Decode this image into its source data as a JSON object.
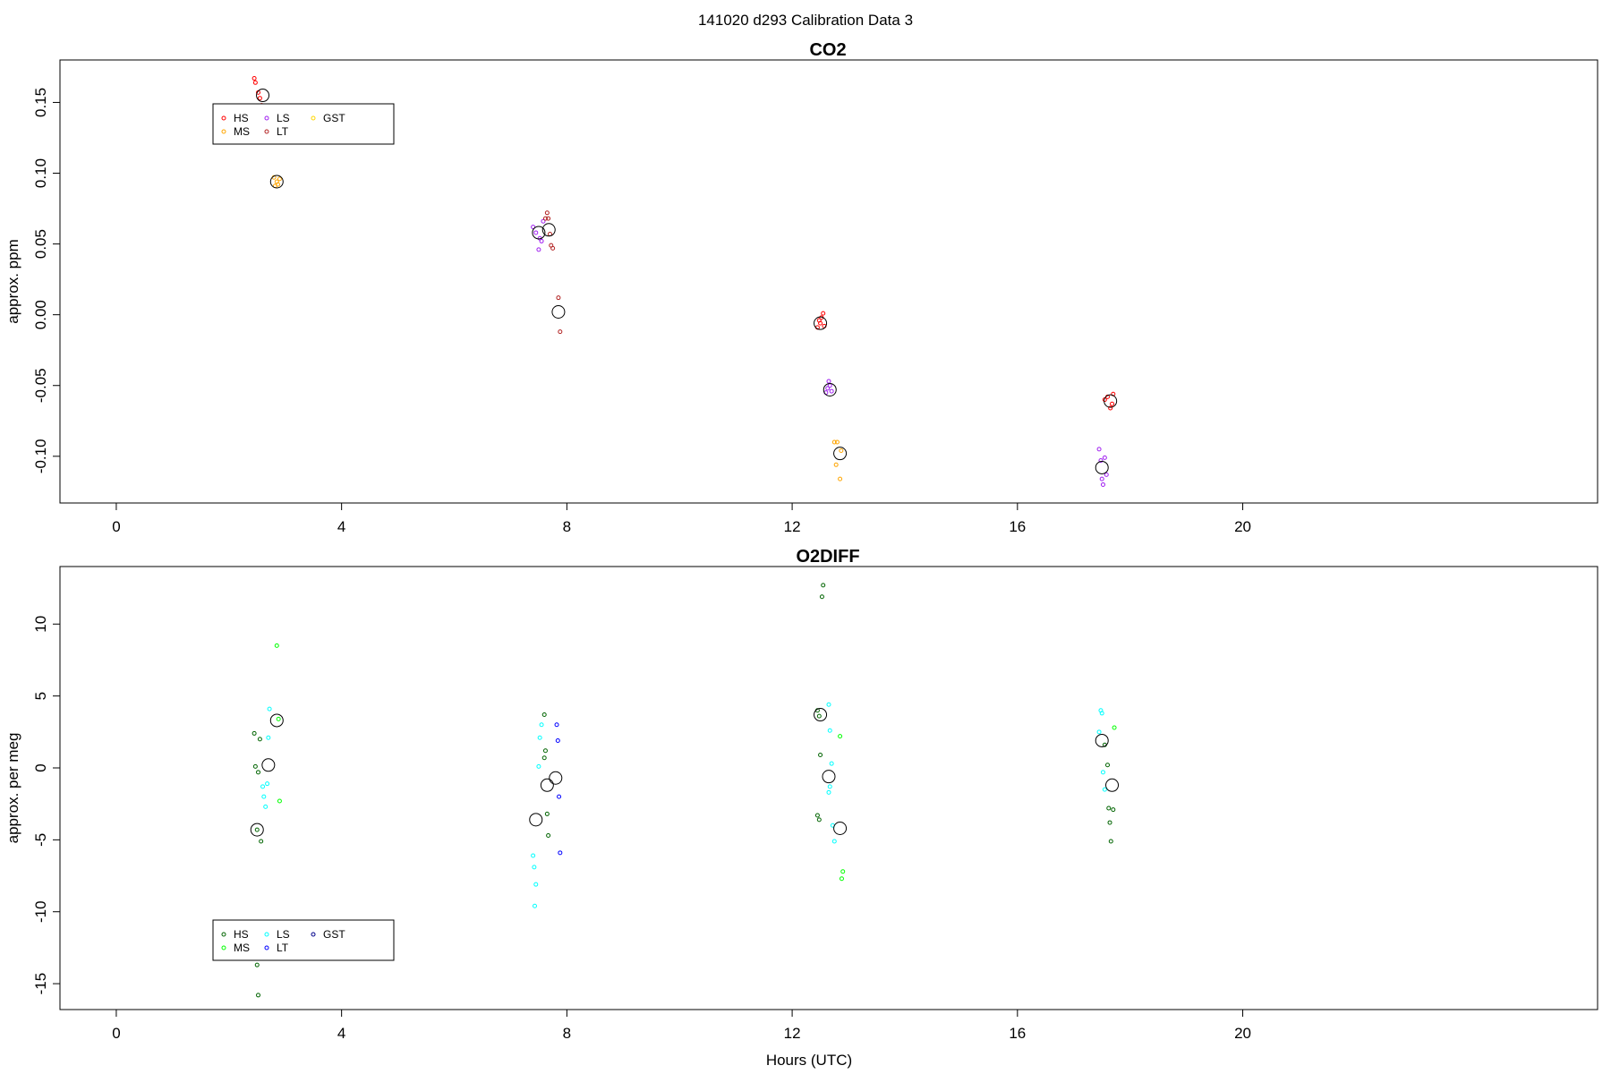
{
  "figure_title": "141020   d293   Calibration Data 3",
  "x_axis_label": "Hours (UTC)",
  "chart_data": [
    {
      "type": "scatter",
      "title": "CO2",
      "xlabel": "",
      "ylabel": "approx. ppm",
      "xlim": [
        -1,
        26.3
      ],
      "ylim": [
        -0.133,
        0.18
      ],
      "x_ticks": [
        0,
        4,
        8,
        12,
        16,
        20
      ],
      "y_ticks": [
        -0.1,
        -0.05,
        0.0,
        0.05,
        0.1,
        0.15
      ],
      "y_tick_labels": [
        "-0.10",
        "-0.05",
        "0.00",
        "0.05",
        "0.10",
        "0.15"
      ],
      "grid": false,
      "legend": {
        "placement": "top-left",
        "entries": [
          {
            "label": "HS",
            "color": "#ff0000"
          },
          {
            "label": "LS",
            "color": "#a020f0"
          },
          {
            "label": "GST",
            "color": "#ffd700"
          },
          {
            "label": "MS",
            "color": "#ffa500"
          },
          {
            "label": "LT",
            "color": "#b22222"
          }
        ]
      },
      "series": [
        {
          "name": "HS",
          "color": "#ff0000",
          "points": [
            [
              2.45,
              0.167
            ],
            [
              2.47,
              0.164
            ],
            [
              2.52,
              0.157
            ],
            [
              2.55,
              0.153
            ],
            [
              2.58,
              0.148
            ],
            [
              12.45,
              -0.009
            ],
            [
              12.48,
              -0.004
            ],
            [
              12.5,
              -0.006
            ],
            [
              12.52,
              -0.002
            ],
            [
              12.55,
              0.001
            ],
            [
              12.57,
              -0.008
            ],
            [
              17.55,
              -0.06
            ],
            [
              17.6,
              -0.058
            ],
            [
              17.65,
              -0.066
            ],
            [
              17.68,
              -0.063
            ],
            [
              17.7,
              -0.056
            ]
          ]
        },
        {
          "name": "MS",
          "color": "#ffa500",
          "points": [
            [
              2.8,
              0.097
            ],
            [
              2.82,
              0.091
            ],
            [
              2.85,
              0.094
            ],
            [
              2.87,
              0.092
            ],
            [
              2.9,
              0.096
            ],
            [
              12.75,
              -0.09
            ],
            [
              12.78,
              -0.106
            ],
            [
              12.8,
              -0.09
            ],
            [
              12.85,
              -0.116
            ],
            [
              12.87,
              -0.096
            ]
          ]
        },
        {
          "name": "LS",
          "color": "#a020f0",
          "points": [
            [
              7.4,
              0.062
            ],
            [
              7.45,
              0.058
            ],
            [
              7.5,
              0.046
            ],
            [
              7.52,
              0.054
            ],
            [
              7.55,
              0.052
            ],
            [
              7.58,
              0.066
            ],
            [
              12.6,
              -0.055
            ],
            [
              12.63,
              -0.052
            ],
            [
              12.65,
              -0.047
            ],
            [
              12.67,
              -0.05
            ],
            [
              12.7,
              -0.054
            ],
            [
              17.45,
              -0.095
            ],
            [
              17.48,
              -0.103
            ],
            [
              17.5,
              -0.116
            ],
            [
              17.52,
              -0.12
            ],
            [
              17.55,
              -0.101
            ],
            [
              17.58,
              -0.113
            ]
          ]
        },
        {
          "name": "LT",
          "color": "#b22222",
          "points": [
            [
              7.62,
              0.068
            ],
            [
              7.65,
              0.072
            ],
            [
              7.67,
              0.068
            ],
            [
              7.7,
              0.057
            ],
            [
              7.72,
              0.049
            ],
            [
              7.75,
              0.047
            ],
            [
              7.85,
              0.012
            ],
            [
              7.88,
              -0.012
            ]
          ]
        },
        {
          "name": "GST",
          "color": "#ffd700",
          "points": []
        }
      ],
      "means": [
        [
          2.6,
          0.155
        ],
        [
          2.85,
          0.094
        ],
        [
          7.5,
          0.058
        ],
        [
          7.68,
          0.06
        ],
        [
          7.85,
          0.002
        ],
        [
          12.5,
          -0.006
        ],
        [
          12.67,
          -0.053
        ],
        [
          12.85,
          -0.098
        ],
        [
          17.5,
          -0.108
        ],
        [
          17.65,
          -0.061
        ]
      ]
    },
    {
      "type": "scatter",
      "title": "O2DIFF",
      "xlabel": "Hours (UTC)",
      "ylabel": "approx. per meg",
      "xlim": [
        -1,
        26.3
      ],
      "ylim": [
        -16.8,
        14.0
      ],
      "x_ticks": [
        0,
        4,
        8,
        12,
        16,
        20
      ],
      "y_ticks": [
        -15,
        -10,
        -5,
        0,
        5,
        10
      ],
      "y_tick_labels": [
        "-15",
        "-10",
        "-5",
        "0",
        "5",
        "10"
      ],
      "grid": false,
      "legend": {
        "placement": "bottom-left",
        "entries": [
          {
            "label": "HS",
            "color": "#006400"
          },
          {
            "label": "LS",
            "color": "#00ffff"
          },
          {
            "label": "GST",
            "color": "#00008b"
          },
          {
            "label": "MS",
            "color": "#00ff00"
          },
          {
            "label": "LT",
            "color": "#0000ff"
          }
        ]
      },
      "series": [
        {
          "name": "HS",
          "color": "#006400",
          "points": [
            [
              2.45,
              2.4
            ],
            [
              2.47,
              0.1
            ],
            [
              2.5,
              -4.3
            ],
            [
              2.52,
              -0.3
            ],
            [
              2.55,
              2.0
            ],
            [
              2.57,
              -5.1
            ],
            [
              2.5,
              -13.7
            ],
            [
              2.52,
              -15.8
            ],
            [
              7.6,
              3.7
            ],
            [
              7.62,
              1.2
            ],
            [
              7.65,
              -3.2
            ],
            [
              7.67,
              -4.7
            ],
            [
              7.6,
              0.7
            ],
            [
              12.45,
              4.0
            ],
            [
              12.48,
              3.6
            ],
            [
              12.5,
              0.9
            ],
            [
              12.45,
              -3.3
            ],
            [
              12.48,
              -3.6
            ],
            [
              12.55,
              12.7
            ],
            [
              12.53,
              11.9
            ],
            [
              17.55,
              1.6
            ],
            [
              17.6,
              0.2
            ],
            [
              17.62,
              -2.8
            ],
            [
              17.64,
              -3.8
            ],
            [
              17.66,
              -5.1
            ],
            [
              17.7,
              -2.9
            ]
          ]
        },
        {
          "name": "MS",
          "color": "#00ff00",
          "points": [
            [
              2.85,
              8.5
            ],
            [
              2.88,
              3.4
            ],
            [
              2.9,
              -2.3
            ],
            [
              12.85,
              2.2
            ],
            [
              12.9,
              -7.2
            ],
            [
              12.88,
              -7.7
            ],
            [
              17.72,
              2.8
            ]
          ]
        },
        {
          "name": "LS",
          "color": "#00ffff",
          "points": [
            [
              2.6,
              -1.3
            ],
            [
              2.62,
              -2.0
            ],
            [
              2.65,
              -2.7
            ],
            [
              2.7,
              2.1
            ],
            [
              2.72,
              4.1
            ],
            [
              2.68,
              -1.1
            ],
            [
              7.4,
              -6.1
            ],
            [
              7.42,
              -6.9
            ],
            [
              7.45,
              -8.1
            ],
            [
              7.43,
              -9.6
            ],
            [
              7.5,
              0.1
            ],
            [
              7.52,
              2.1
            ],
            [
              7.55,
              3.0
            ],
            [
              12.65,
              4.4
            ],
            [
              12.7,
              0.3
            ],
            [
              12.67,
              -1.3
            ],
            [
              12.65,
              -1.7
            ],
            [
              12.72,
              -4.0
            ],
            [
              12.75,
              -5.1
            ],
            [
              12.67,
              2.6
            ],
            [
              17.45,
              2.5
            ],
            [
              17.48,
              4.0
            ],
            [
              17.5,
              3.8
            ],
            [
              17.52,
              -0.3
            ],
            [
              17.55,
              -1.5
            ]
          ]
        },
        {
          "name": "LT",
          "color": "#0000ff",
          "points": [
            [
              7.82,
              3.0
            ],
            [
              7.84,
              1.9
            ],
            [
              7.86,
              -2.0
            ],
            [
              7.88,
              -5.9
            ]
          ]
        },
        {
          "name": "GST",
          "color": "#00008b",
          "points": []
        }
      ],
      "means": [
        [
          2.5,
          -4.3
        ],
        [
          2.7,
          0.2
        ],
        [
          2.85,
          3.3
        ],
        [
          7.45,
          -3.6
        ],
        [
          7.65,
          -1.2
        ],
        [
          7.8,
          -0.7
        ],
        [
          12.5,
          3.7
        ],
        [
          12.65,
          -0.6
        ],
        [
          12.85,
          -4.2
        ],
        [
          17.5,
          1.9
        ],
        [
          17.68,
          -1.2
        ]
      ]
    }
  ]
}
